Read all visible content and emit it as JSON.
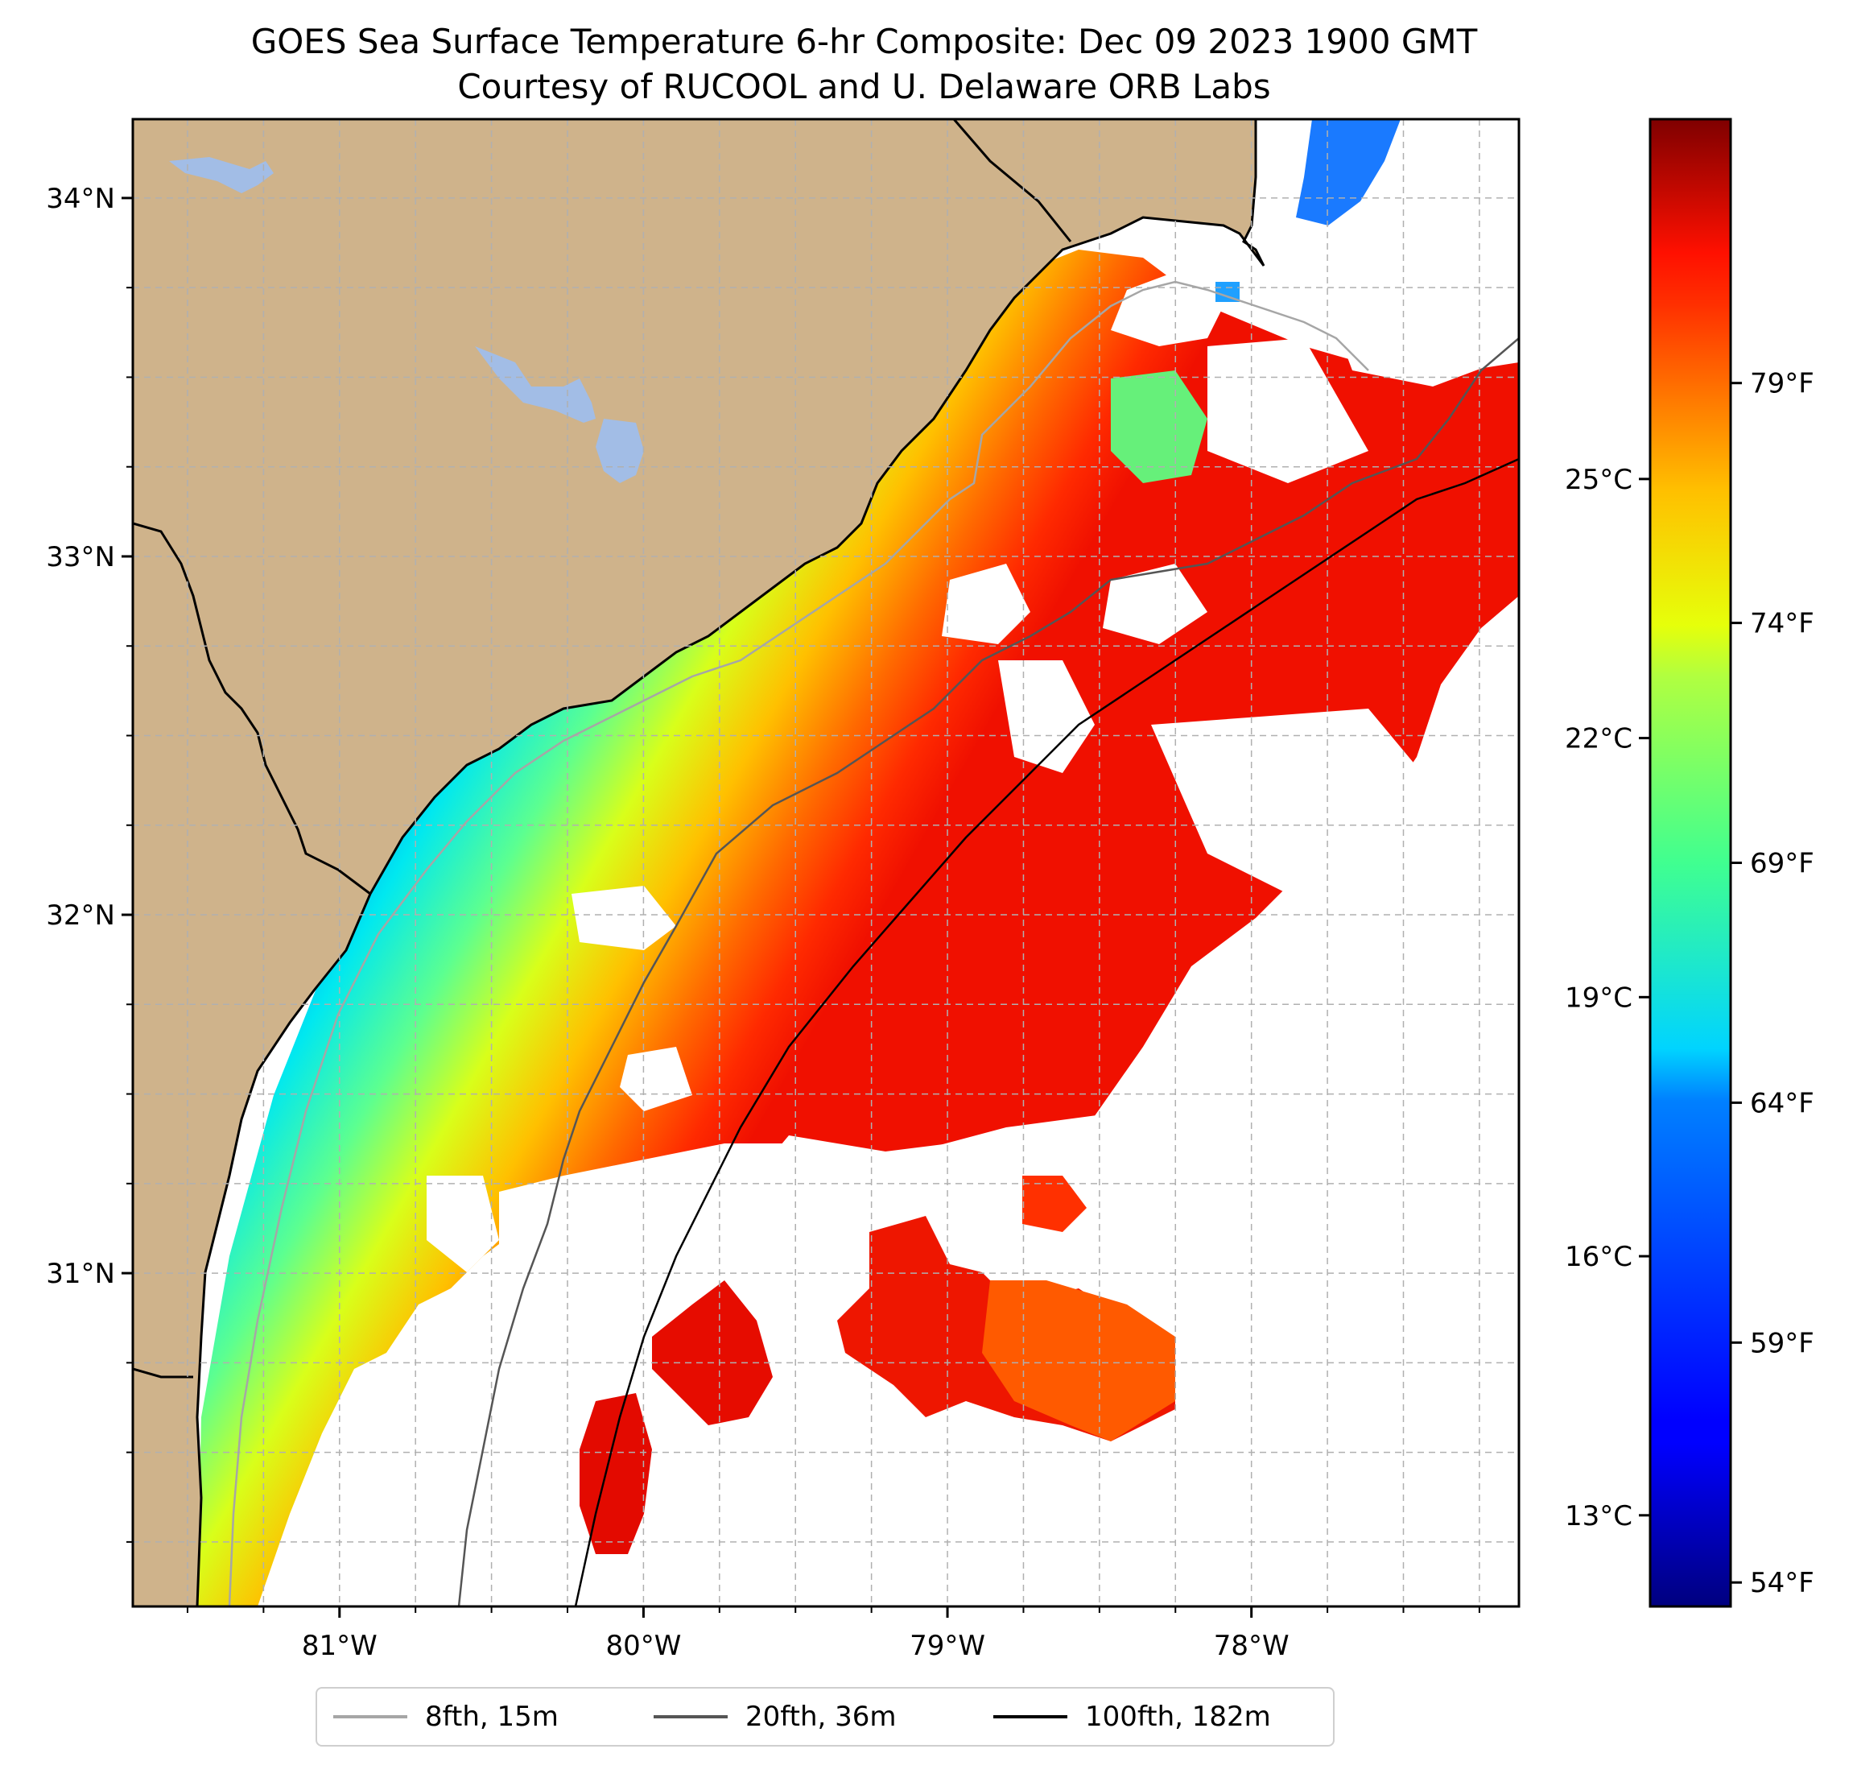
{
  "title": {
    "line1": "GOES Sea Surface Temperature 6-hr Composite: Dec 09 2023 1900 GMT",
    "line2": "Courtesy of RUCOOL and U. Delaware ORB Labs"
  },
  "map": {
    "lon_range": [
      -81.68,
      -77.12
    ],
    "lat_range": [
      30.07,
      34.22
    ],
    "lon_ticks": [
      {
        "v": -81,
        "label": "81°W"
      },
      {
        "v": -80,
        "label": "80°W"
      },
      {
        "v": -79,
        "label": "79°W"
      },
      {
        "v": -78,
        "label": "78°W"
      }
    ],
    "lat_ticks": [
      {
        "v": 34,
        "label": "34°N"
      },
      {
        "v": 33,
        "label": "33°N"
      },
      {
        "v": 32,
        "label": "32°N"
      },
      {
        "v": 31,
        "label": "31°N"
      }
    ],
    "grid": "dashed",
    "colors": {
      "land": "#cfb38b",
      "lakes": "#a2bde6",
      "ocean": "#ffffff"
    }
  },
  "colorbar": {
    "colormap": "jet",
    "celsius_ticks": [
      {
        "v": 25,
        "label": "25°C"
      },
      {
        "v": 22,
        "label": "22°C"
      },
      {
        "v": 19,
        "label": "19°C"
      },
      {
        "v": 16,
        "label": "16°C"
      },
      {
        "v": 13,
        "label": "13°C"
      }
    ],
    "fahrenheit_ticks": [
      {
        "v": 79,
        "label": "79°F"
      },
      {
        "v": 74,
        "label": "74°F"
      },
      {
        "v": 69,
        "label": "69°F"
      },
      {
        "v": 64,
        "label": "64°F"
      },
      {
        "v": 59,
        "label": "59°F"
      },
      {
        "v": 54,
        "label": "54°F"
      }
    ]
  },
  "legend": {
    "items": [
      {
        "label": "8fth, 15m",
        "color": "#a6a6a6"
      },
      {
        "label": "20fth, 36m",
        "color": "#555555"
      },
      {
        "label": "100fth, 182m",
        "color": "#000000"
      }
    ]
  }
}
